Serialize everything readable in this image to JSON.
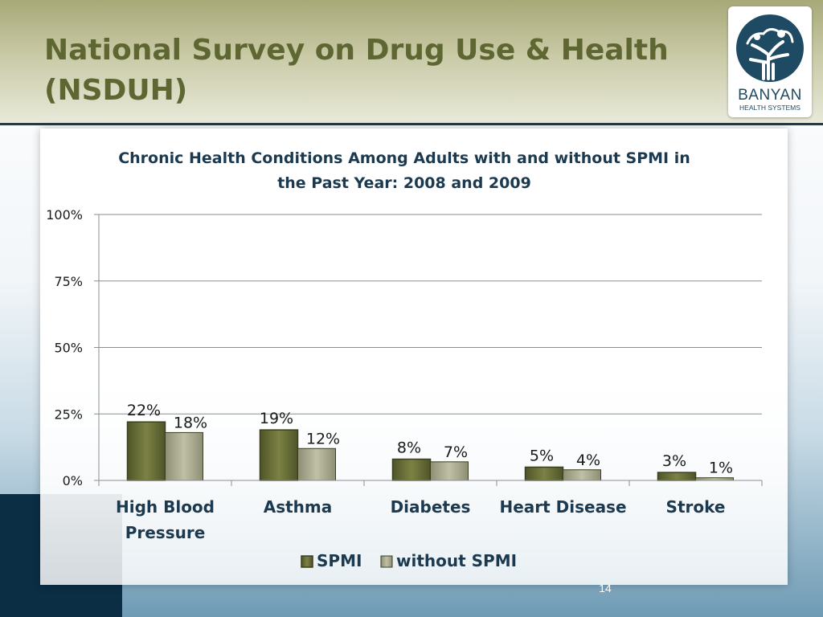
{
  "slide": {
    "title": "National Survey on Drug Use & Health (NSDUH)",
    "page_number": "14"
  },
  "logo": {
    "name": "BANYAN",
    "subtitle": "HEALTH SYSTEMS"
  },
  "colors": {
    "title": "#5e6632",
    "spmi": "#6b7038",
    "without_spmi": "#a9a98e",
    "chart_title": "#1c3a4f"
  },
  "chart_data": {
    "type": "bar",
    "title": "Chronic Health Conditions Among Adults with and without SPMI in the Past Year: 2008 and 2009",
    "title_lines": [
      "Chronic Health Conditions Among Adults with and without SPMI in",
      "the Past Year: 2008 and 2009"
    ],
    "categories": [
      "High Blood Pressure",
      "Asthma",
      "Diabetes",
      "Heart Disease",
      "Stroke"
    ],
    "category_lines": [
      [
        "High Blood",
        "Pressure"
      ],
      [
        "Asthma"
      ],
      [
        "Diabetes"
      ],
      [
        "Heart Disease"
      ],
      [
        "Stroke"
      ]
    ],
    "series": [
      {
        "name": "SPMI",
        "values": [
          22,
          19,
          8,
          5,
          3
        ]
      },
      {
        "name": "without SPMI",
        "values": [
          18,
          12,
          7,
          4,
          1
        ]
      }
    ],
    "data_labels": [
      [
        "22%",
        "19%",
        "8%",
        "5%",
        "3%"
      ],
      [
        "18%",
        "12%",
        "7%",
        "4%",
        "1%"
      ]
    ],
    "ylim": [
      0,
      100
    ],
    "yticks": [
      0,
      25,
      50,
      75,
      100
    ],
    "ytick_labels": [
      "0%",
      "25%",
      "50%",
      "75%",
      "100%"
    ],
    "grid": true,
    "legend_position": "bottom"
  }
}
